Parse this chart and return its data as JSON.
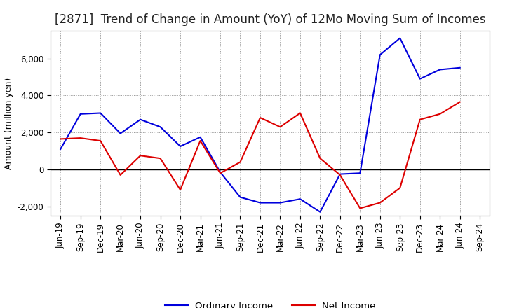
{
  "title": "[2871]  Trend of Change in Amount (YoY) of 12Mo Moving Sum of Incomes",
  "ylabel": "Amount (million yen)",
  "x_labels": [
    "Jun-19",
    "Sep-19",
    "Dec-19",
    "Mar-20",
    "Jun-20",
    "Sep-20",
    "Dec-20",
    "Mar-21",
    "Jun-21",
    "Sep-21",
    "Dec-21",
    "Mar-22",
    "Jun-22",
    "Sep-22",
    "Dec-22",
    "Mar-23",
    "Jun-23",
    "Sep-23",
    "Dec-23",
    "Mar-24",
    "Jun-24",
    "Sep-24"
  ],
  "ordinary_income": [
    1100,
    3000,
    3050,
    1950,
    2700,
    2300,
    1250,
    1750,
    -150,
    -1500,
    -1800,
    -1800,
    -1600,
    -2300,
    -250,
    -200,
    6200,
    7100,
    4900,
    5400,
    5500,
    null
  ],
  "net_income": [
    1650,
    1700,
    1550,
    -300,
    750,
    600,
    -1100,
    1550,
    -200,
    400,
    2800,
    2300,
    3050,
    600,
    -300,
    -2100,
    -1800,
    -1000,
    2700,
    3000,
    3650,
    null
  ],
  "ordinary_income_color": "#0000dd",
  "net_income_color": "#dd0000",
  "background_color": "#ffffff",
  "grid_color": "#999999",
  "ylim": [
    -2500,
    7500
  ],
  "yticks": [
    -2000,
    0,
    2000,
    4000,
    6000
  ],
  "legend_labels": [
    "Ordinary Income",
    "Net Income"
  ],
  "title_fontsize": 12,
  "axis_fontsize": 9,
  "tick_fontsize": 8.5
}
